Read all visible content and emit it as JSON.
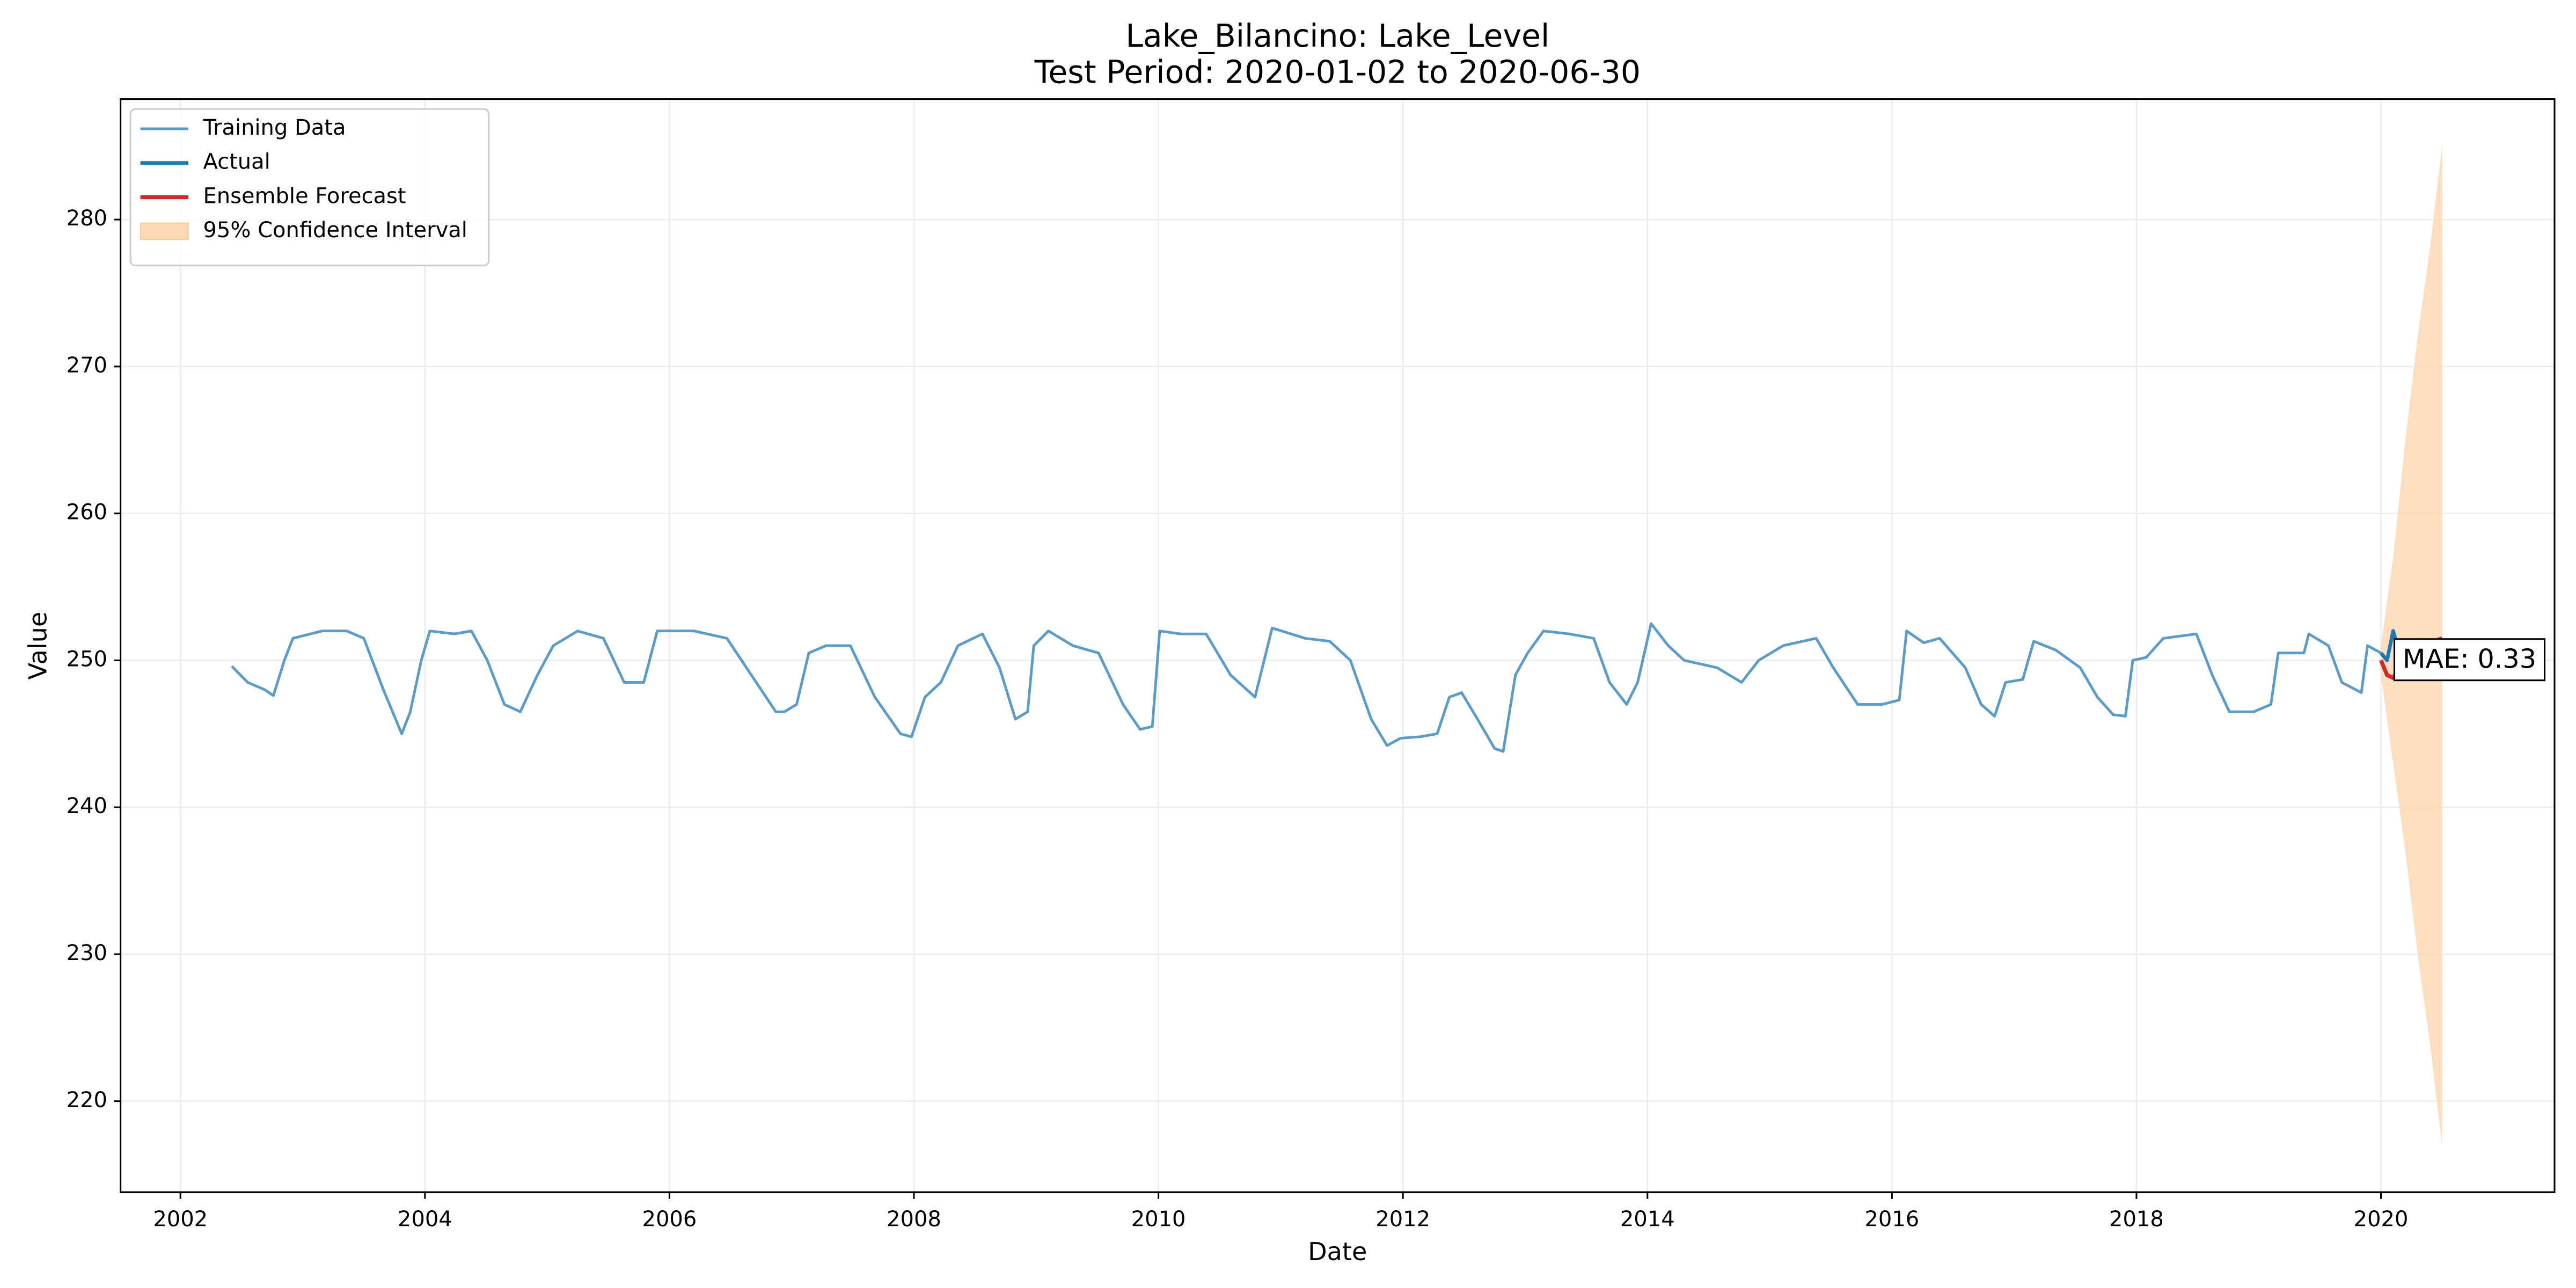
{
  "chart_data": {
    "type": "line",
    "title": "Lake_Bilancino: Lake_Level",
    "subtitle": "Test Period: 2020-01-02 to 2020-06-30",
    "xlabel": "Date",
    "ylabel": "Value",
    "xlim": [
      2001.51,
      2021.42
    ],
    "ylim": [
      213.8,
      288.2
    ],
    "xticks": [
      2002,
      2004,
      2006,
      2008,
      2010,
      2012,
      2014,
      2016,
      2018,
      2020
    ],
    "yticks": [
      220,
      230,
      240,
      250,
      260,
      270,
      280
    ],
    "grid": true,
    "legend": "upper left",
    "annotation": "MAE: 0.33",
    "series": [
      {
        "name": "Training Data",
        "color": "#5a9bc9",
        "x": [
          2002.42,
          2002.55,
          2002.69,
          2002.76,
          2002.85,
          2002.92,
          2003.16,
          2003.36,
          2003.5,
          2003.66,
          2003.81,
          2003.88,
          2003.97,
          2004.04,
          2004.24,
          2004.38,
          2004.51,
          2004.65,
          2004.78,
          2004.92,
          2005.05,
          2005.25,
          2005.46,
          2005.63,
          2005.79,
          2005.9,
          2006.2,
          2006.47,
          2006.67,
          2006.87,
          2006.94,
          2007.04,
          2007.14,
          2007.28,
          2007.48,
          2007.68,
          2007.89,
          2007.98,
          2008.09,
          2008.22,
          2008.36,
          2008.56,
          2008.7,
          2008.83,
          2008.93,
          2008.98,
          2009.1,
          2009.3,
          2009.51,
          2009.71,
          2009.85,
          2009.95,
          2010.01,
          2010.18,
          2010.39,
          2010.59,
          2010.79,
          2010.93,
          2011.2,
          2011.4,
          2011.57,
          2011.74,
          2011.87,
          2011.98,
          2012.14,
          2012.28,
          2012.38,
          2012.48,
          2012.61,
          2012.75,
          2012.82,
          2012.92,
          2013.02,
          2013.15,
          2013.36,
          2013.56,
          2013.69,
          2013.83,
          2013.92,
          2014.03,
          2014.17,
          2014.3,
          2014.57,
          2014.77,
          2014.91,
          2015.11,
          2015.38,
          2015.52,
          2015.72,
          2015.92,
          2016.06,
          2016.12,
          2016.26,
          2016.39,
          2016.6,
          2016.73,
          2016.84,
          2016.93,
          2017.07,
          2017.16,
          2017.34,
          2017.54,
          2017.68,
          2017.81,
          2017.91,
          2017.97,
          2018.08,
          2018.22,
          2018.49,
          2018.62,
          2018.76,
          2018.96,
          2019.1,
          2019.16,
          2019.37,
          2019.41,
          2019.57,
          2019.68,
          2019.84,
          2019.89,
          2020.0
        ],
        "values": [
          249.6,
          248.5,
          248,
          247.6,
          250,
          251.5,
          252,
          252,
          251.5,
          248,
          245,
          246.5,
          250,
          252,
          251.8,
          252,
          250,
          247,
          246.5,
          249,
          251,
          252,
          251.5,
          248.5,
          248.5,
          252,
          252,
          251.5,
          249,
          246.5,
          246.5,
          247,
          250.5,
          251,
          251,
          247.5,
          245,
          244.8,
          247.5,
          248.5,
          251,
          251.8,
          249.5,
          246,
          246.5,
          251,
          252,
          251,
          250.5,
          247,
          245.3,
          245.5,
          252,
          251.8,
          251.8,
          249,
          247.5,
          252.2,
          251.5,
          251.3,
          250,
          246,
          244.2,
          244.7,
          244.8,
          245,
          247.5,
          247.8,
          246,
          244,
          243.8,
          249,
          250.5,
          252,
          251.8,
          251.5,
          248.5,
          247,
          248.5,
          252.5,
          251,
          250,
          249.5,
          248.5,
          250,
          251,
          251.5,
          249.5,
          247,
          247,
          247.3,
          252,
          251.2,
          251.5,
          249.5,
          247,
          246.2,
          248.5,
          248.7,
          251.3,
          250.7,
          249.5,
          247.5,
          246.3,
          246.2,
          250,
          250.2,
          251.5,
          251.8,
          249,
          246.5,
          246.5,
          247,
          250.5,
          250.5,
          251.8,
          251,
          248.5,
          247.8,
          251,
          250.5
        ]
      },
      {
        "name": "Actual",
        "color": "#1f77b4",
        "x": [
          2020.0,
          2020.05,
          2020.1,
          2020.15,
          2020.2,
          2020.3,
          2020.4,
          2020.5
        ],
        "values": [
          250.5,
          250,
          252,
          250.5,
          250,
          250.5,
          251,
          251.5
        ]
      },
      {
        "name": "Ensemble Forecast",
        "color": "#d62728",
        "x": [
          2020.0,
          2020.05,
          2020.1,
          2020.15,
          2020.2,
          2020.3,
          2020.4,
          2020.5
        ],
        "values": [
          250,
          249,
          248.8,
          249.5,
          250,
          250.5,
          251.2,
          251.5
        ]
      }
    ],
    "band": {
      "name": "95% Confidence Interval",
      "color": "#fdd9b5",
      "x": [
        2020.0,
        2020.05,
        2020.1,
        2020.15,
        2020.2,
        2020.3,
        2020.4,
        2020.5
      ],
      "lower": [
        249,
        246,
        243,
        240,
        237,
        230,
        224,
        217
      ],
      "upper": [
        251,
        254,
        257,
        261,
        265,
        272,
        278,
        285
      ]
    }
  }
}
